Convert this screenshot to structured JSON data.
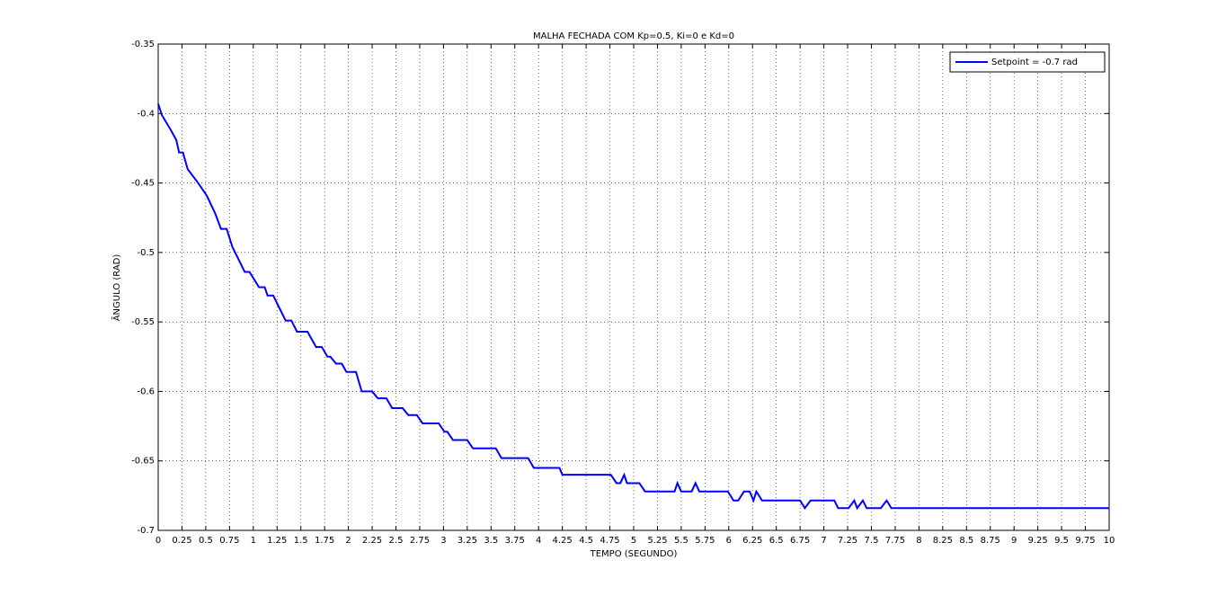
{
  "chart_data": {
    "type": "line",
    "title": "MALHA FECHADA COM Kp=0.5, Ki=0 e Kd=0",
    "x_label": "TEMPO (SEGUNDO)",
    "y_label": "ÃNGULO (RAD)",
    "x": [
      0,
      0.038,
      0.13,
      0.19,
      0.22,
      0.26,
      0.31,
      0.42,
      0.51,
      0.6,
      0.66,
      0.72,
      0.78,
      0.91,
      0.96,
      1.06,
      1.12,
      1.15,
      1.21,
      1.34,
      1.4,
      1.46,
      1.57,
      1.66,
      1.72,
      1.78,
      1.81,
      1.87,
      1.93,
      1.98,
      2.08,
      2.14,
      2.25,
      2.31,
      2.4,
      2.46,
      2.57,
      2.63,
      2.72,
      2.78,
      2.95,
      3.01,
      3.04,
      3.1,
      3.25,
      3.31,
      3.55,
      3.61,
      3.89,
      3.95,
      4.22,
      4.25,
      4.76,
      4.82,
      4.86,
      4.9,
      4.93,
      5.0,
      5.06,
      5.12,
      5.43,
      5.46,
      5.5,
      5.61,
      5.65,
      5.69,
      5.99,
      6.05,
      6.1,
      6.16,
      6.22,
      6.26,
      6.29,
      6.35,
      6.75,
      6.8,
      6.86,
      7.11,
      7.15,
      7.26,
      7.32,
      7.35,
      7.41,
      7.45,
      7.6,
      7.66,
      7.71,
      10
    ],
    "series": [
      {
        "name": "Setpoint = -0.7 rad",
        "color": "#0000ff",
        "values": [
          -0.393,
          -0.401,
          -0.4115,
          -0.419,
          -0.428,
          -0.428,
          -0.44,
          -0.45,
          -0.459,
          -0.472,
          -0.483,
          -0.483,
          -0.496,
          -0.514,
          -0.514,
          -0.525,
          -0.525,
          -0.531,
          -0.531,
          -0.549,
          -0.549,
          -0.557,
          -0.557,
          -0.568,
          -0.568,
          -0.575,
          -0.575,
          -0.58,
          -0.58,
          -0.586,
          -0.586,
          -0.6,
          -0.6,
          -0.605,
          -0.605,
          -0.612,
          -0.612,
          -0.617,
          -0.617,
          -0.623,
          -0.623,
          -0.629,
          -0.629,
          -0.635,
          -0.635,
          -0.641,
          -0.641,
          -0.648,
          -0.648,
          -0.655,
          -0.655,
          -0.66,
          -0.66,
          -0.666,
          -0.666,
          -0.66,
          -0.666,
          -0.666,
          -0.666,
          -0.672,
          -0.672,
          -0.666,
          -0.672,
          -0.672,
          -0.666,
          -0.672,
          -0.672,
          -0.6785,
          -0.6785,
          -0.672,
          -0.672,
          -0.6785,
          -0.672,
          -0.6785,
          -0.6785,
          -0.684,
          -0.6785,
          -0.6785,
          -0.684,
          -0.684,
          -0.6785,
          -0.684,
          -0.6785,
          -0.684,
          -0.684,
          -0.6785,
          -0.684,
          -0.684
        ]
      }
    ],
    "xlim": [
      0,
      10
    ],
    "ylim": [
      -0.7,
      -0.35
    ],
    "xticks": [
      0,
      0.25,
      0.5,
      0.75,
      1,
      1.25,
      1.5,
      1.75,
      2,
      2.25,
      2.5,
      2.75,
      3,
      3.25,
      3.5,
      3.75,
      4,
      4.25,
      4.5,
      4.75,
      5,
      5.25,
      5.5,
      5.75,
      6,
      6.25,
      6.5,
      6.75,
      7,
      7.25,
      7.5,
      7.75,
      8,
      8.25,
      8.5,
      8.75,
      9,
      9.25,
      9.5,
      9.75,
      10
    ],
    "yticks": [
      -0.7,
      -0.65,
      -0.6,
      -0.55,
      -0.5,
      -0.45,
      -0.4,
      -0.35
    ],
    "grid": true,
    "legend": "top-right"
  }
}
